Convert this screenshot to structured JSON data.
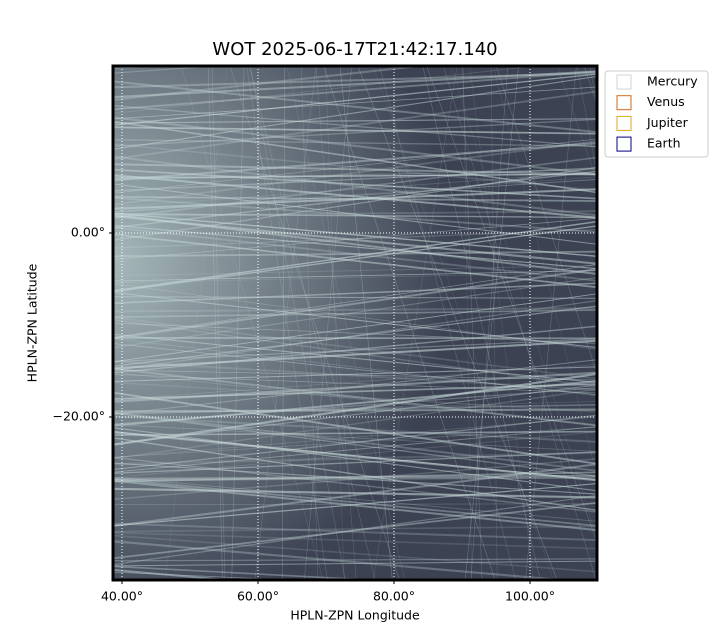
{
  "chart_data": {
    "type": "image",
    "title": "WOT 2025-06-17T21:42:17.140",
    "x_label": "HPLN-ZPN Longitude",
    "y_label": "HPLN-ZPN Latitude",
    "xlim": [
      38.68,
      109.85
    ],
    "ylim": [
      -37.72,
      18.15
    ],
    "xticks": [
      {
        "value": 40,
        "label": "40.00°"
      },
      {
        "value": 60,
        "label": "60.00°"
      },
      {
        "value": 80,
        "label": "80.00°"
      },
      {
        "value": 100,
        "label": "100.00°"
      }
    ],
    "yticks": [
      {
        "value": 0,
        "label": "0.00°"
      },
      {
        "value": -20,
        "label": "−20.00°"
      }
    ],
    "grid": true,
    "legend_position": "upper right outside",
    "legend": [
      {
        "name": "Mercury",
        "color": "#d3d3d3"
      },
      {
        "name": "Venus",
        "color": "#d2691e"
      },
      {
        "name": "Jupiter",
        "color": "#daa520"
      },
      {
        "name": "Earth",
        "color": "#000080"
      }
    ]
  }
}
